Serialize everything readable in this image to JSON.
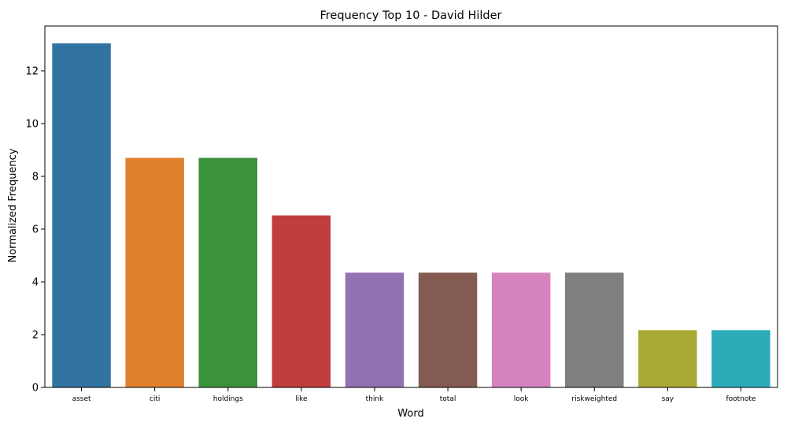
{
  "chart_data": {
    "type": "bar",
    "title": "Frequency Top 10 - David Hilder",
    "xlabel": "Word",
    "ylabel": "Normalized Frequency",
    "categories": [
      "asset",
      "citi",
      "holdings",
      "like",
      "think",
      "total",
      "look",
      "riskweighted",
      "say",
      "footnote"
    ],
    "values": [
      13.04,
      8.7,
      8.7,
      6.52,
      4.35,
      4.35,
      4.35,
      4.35,
      2.17,
      2.17
    ],
    "colors": [
      "#3274a1",
      "#e1812c",
      "#3a923a",
      "#c03d3e",
      "#9372b2",
      "#845b53",
      "#d684bd",
      "#7f7f7f",
      "#a9aa35",
      "#2eabb8"
    ],
    "yticks": [
      0,
      2,
      4,
      6,
      8,
      10,
      12
    ],
    "ylim": [
      0,
      13.7
    ],
    "grid": false,
    "legend": "none"
  }
}
